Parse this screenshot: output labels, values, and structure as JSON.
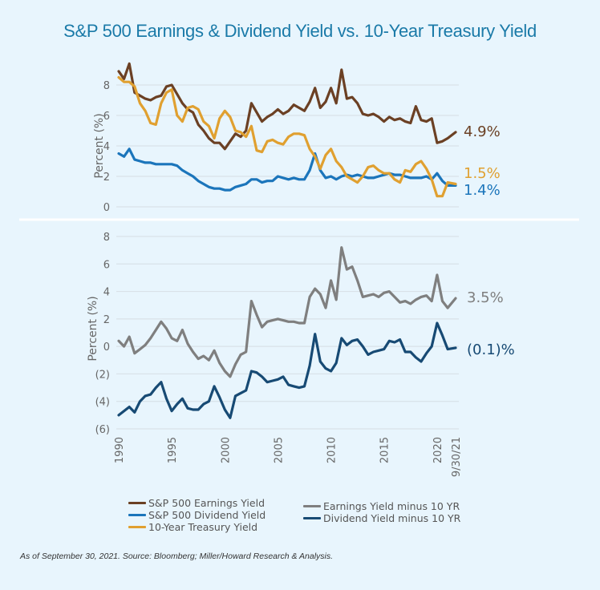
{
  "title": "S&P 500 Earnings & Dividend Yield vs. 10-Year Treasury Yield",
  "source_note": "As of September 30, 2021. Source: Bloomberg; Miller/Howard Research & Analysis.",
  "colors": {
    "earnings": "#6b4024",
    "dividend": "#1b75bb",
    "treasury": "#e0a030",
    "earn_minus": "#7f7f7f",
    "div_minus": "#174a74"
  },
  "chart_data": [
    {
      "type": "line",
      "title": "",
      "xlabel": "",
      "ylabel": "Percent (%)",
      "ylim": [
        0,
        9
      ],
      "yticks": [
        0,
        2,
        4,
        6,
        8
      ],
      "ytick_labels": [
        "0",
        "2",
        "4",
        "6",
        "8"
      ],
      "xlim": [
        1990,
        2021.75
      ],
      "xticks": [
        1990,
        1995,
        2000,
        2005,
        2010,
        2015,
        2020,
        2021.75
      ],
      "xtick_labels": [
        "1990",
        "1995",
        "2000",
        "2005",
        "2010",
        "2015",
        "2020",
        "9/30/21"
      ],
      "grid": true,
      "x": [
        1990,
        1990.5,
        1991,
        1991.5,
        1992,
        1992.5,
        1993,
        1993.5,
        1994,
        1994.5,
        1995,
        1995.5,
        1996,
        1996.5,
        1997,
        1997.5,
        1998,
        1998.5,
        1999,
        1999.5,
        2000,
        2000.5,
        2001,
        2001.5,
        2002,
        2002.5,
        2003,
        2003.5,
        2004,
        2004.5,
        2005,
        2005.5,
        2006,
        2006.5,
        2007,
        2007.5,
        2008,
        2008.5,
        2009,
        2009.5,
        2010,
        2010.5,
        2011,
        2011.5,
        2012,
        2012.5,
        2013,
        2013.5,
        2014,
        2014.5,
        2015,
        2015.5,
        2016,
        2016.5,
        2017,
        2017.5,
        2018,
        2018.5,
        2019,
        2019.5,
        2020,
        2020.5,
        2021,
        2021.75
      ],
      "series": [
        {
          "name": "S&P 500 Earnings Yield",
          "color_key": "earnings",
          "end_label": "4.9%",
          "values": [
            8.9,
            8.4,
            9.4,
            7.5,
            7.3,
            7.1,
            7.0,
            7.2,
            7.3,
            7.9,
            8.0,
            7.4,
            6.8,
            6.4,
            6.2,
            5.4,
            5.0,
            4.5,
            4.2,
            4.2,
            3.8,
            4.3,
            4.8,
            4.6,
            5.0,
            6.8,
            6.2,
            5.6,
            5.9,
            6.1,
            6.4,
            6.1,
            6.3,
            6.7,
            6.5,
            6.3,
            6.9,
            7.8,
            6.5,
            6.9,
            7.8,
            6.8,
            9.0,
            7.1,
            7.2,
            6.8,
            6.1,
            6.0,
            6.1,
            5.9,
            5.6,
            5.9,
            5.7,
            5.8,
            5.6,
            5.5,
            6.6,
            5.7,
            5.6,
            5.8,
            4.2,
            4.3,
            4.5,
            4.9
          ]
        },
        {
          "name": "S&P 500 Dividend Yield",
          "color_key": "dividend",
          "end_label": "1.4%",
          "values": [
            3.5,
            3.3,
            3.8,
            3.1,
            3.0,
            2.9,
            2.9,
            2.8,
            2.8,
            2.8,
            2.8,
            2.7,
            2.4,
            2.2,
            2.0,
            1.7,
            1.5,
            1.3,
            1.2,
            1.2,
            1.1,
            1.1,
            1.3,
            1.4,
            1.5,
            1.8,
            1.8,
            1.6,
            1.7,
            1.7,
            2.0,
            1.9,
            1.8,
            1.9,
            1.8,
            1.8,
            2.4,
            3.5,
            2.4,
            1.9,
            2.0,
            1.8,
            2.0,
            2.1,
            2.0,
            2.1,
            2.0,
            1.9,
            1.9,
            2.0,
            2.1,
            2.2,
            2.1,
            2.1,
            2.0,
            1.9,
            1.9,
            1.9,
            2.0,
            1.8,
            2.2,
            1.7,
            1.4,
            1.4
          ]
        },
        {
          "name": "10-Year Treasury Yield",
          "color_key": "treasury",
          "end_label": "1.5%",
          "values": [
            8.5,
            8.2,
            8.2,
            7.9,
            6.8,
            6.3,
            5.5,
            5.4,
            6.8,
            7.5,
            7.7,
            6.0,
            5.6,
            6.5,
            6.6,
            6.4,
            5.6,
            5.3,
            4.5,
            5.8,
            6.3,
            5.9,
            5.0,
            4.9,
            4.6,
            5.3,
            3.7,
            3.6,
            4.3,
            4.4,
            4.2,
            4.1,
            4.6,
            4.8,
            4.8,
            4.7,
            3.8,
            3.3,
            2.5,
            3.4,
            3.8,
            3.0,
            2.6,
            2.0,
            1.8,
            1.6,
            2.0,
            2.6,
            2.7,
            2.4,
            2.2,
            2.2,
            1.8,
            1.6,
            2.4,
            2.3,
            2.8,
            3.0,
            2.5,
            1.8,
            0.7,
            0.7,
            1.6,
            1.5
          ]
        }
      ]
    },
    {
      "type": "line",
      "title": "",
      "xlabel": "",
      "ylabel": "Percent (%)",
      "ylim": [
        -6,
        8
      ],
      "yticks": [
        -6,
        -4,
        -2,
        0,
        2,
        4,
        6,
        8
      ],
      "ytick_labels": [
        "(6)",
        "(4)",
        "(2)",
        "0",
        "2",
        "4",
        "6",
        "8"
      ],
      "xlim": [
        1990,
        2021.75
      ],
      "xticks": [
        1990,
        1995,
        2000,
        2005,
        2010,
        2015,
        2020,
        2021.75
      ],
      "xtick_labels": [
        "1990",
        "1995",
        "2000",
        "2005",
        "2010",
        "2015",
        "2020",
        "9/30/21"
      ],
      "grid": true,
      "x": [
        1990,
        1990.5,
        1991,
        1991.5,
        1992,
        1992.5,
        1993,
        1993.5,
        1994,
        1994.5,
        1995,
        1995.5,
        1996,
        1996.5,
        1997,
        1997.5,
        1998,
        1998.5,
        1999,
        1999.5,
        2000,
        2000.5,
        2001,
        2001.5,
        2002,
        2002.5,
        2003,
        2003.5,
        2004,
        2004.5,
        2005,
        2005.5,
        2006,
        2006.5,
        2007,
        2007.5,
        2008,
        2008.5,
        2009,
        2009.5,
        2010,
        2010.5,
        2011,
        2011.5,
        2012,
        2012.5,
        2013,
        2013.5,
        2014,
        2014.5,
        2015,
        2015.5,
        2016,
        2016.5,
        2017,
        2017.5,
        2018,
        2018.5,
        2019,
        2019.5,
        2020,
        2020.5,
        2021,
        2021.75
      ],
      "series": [
        {
          "name": "Earnings Yield minus 10 YR",
          "color_key": "earn_minus",
          "end_label": "3.5%",
          "values": [
            0.4,
            0.0,
            0.7,
            -0.5,
            -0.2,
            0.1,
            0.6,
            1.2,
            1.8,
            1.3,
            0.6,
            0.4,
            1.2,
            0.2,
            -0.4,
            -0.9,
            -0.7,
            -1.0,
            -0.3,
            -1.2,
            -1.8,
            -2.2,
            -1.3,
            -0.6,
            -0.4,
            3.3,
            2.3,
            1.4,
            1.8,
            1.9,
            2.0,
            1.9,
            1.8,
            1.8,
            1.7,
            1.7,
            3.6,
            4.2,
            3.8,
            2.8,
            4.8,
            3.4,
            7.2,
            5.6,
            5.8,
            4.8,
            3.6,
            3.7,
            3.8,
            3.6,
            3.9,
            4.0,
            3.6,
            3.2,
            3.3,
            3.1,
            3.4,
            3.6,
            3.7,
            3.3,
            5.2,
            3.3,
            2.8,
            3.5
          ]
        },
        {
          "name": "Dividend Yield minus 10 YR",
          "color_key": "div_minus",
          "end_label": "(0.1)%",
          "values": [
            -5.0,
            -4.7,
            -4.4,
            -4.8,
            -4.0,
            -3.6,
            -3.5,
            -3.0,
            -2.6,
            -3.8,
            -4.7,
            -4.2,
            -3.8,
            -4.5,
            -4.6,
            -4.6,
            -4.2,
            -4.0,
            -2.9,
            -3.7,
            -4.6,
            -5.2,
            -3.6,
            -3.4,
            -3.2,
            -1.8,
            -1.9,
            -2.2,
            -2.6,
            -2.5,
            -2.4,
            -2.2,
            -2.8,
            -2.9,
            -3.0,
            -2.9,
            -1.4,
            0.9,
            -1.1,
            -1.6,
            -1.8,
            -1.2,
            0.6,
            0.1,
            0.4,
            0.5,
            0.0,
            -0.6,
            -0.4,
            -0.3,
            -0.2,
            0.4,
            0.3,
            0.5,
            -0.4,
            -0.4,
            -0.8,
            -1.1,
            -0.5,
            0.0,
            1.7,
            0.8,
            -0.2,
            -0.1
          ]
        }
      ]
    }
  ],
  "legend": {
    "left": [
      {
        "label": "S&P 500 Earnings Yield",
        "color_key": "earnings"
      },
      {
        "label": "S&P 500 Dividend Yield",
        "color_key": "dividend"
      },
      {
        "label": "10-Year Treasury Yield",
        "color_key": "treasury"
      }
    ],
    "right": [
      {
        "label": "Earnings Yield minus 10 YR",
        "color_key": "earn_minus"
      },
      {
        "label": "Dividend Yield minus 10 YR",
        "color_key": "div_minus"
      }
    ]
  }
}
